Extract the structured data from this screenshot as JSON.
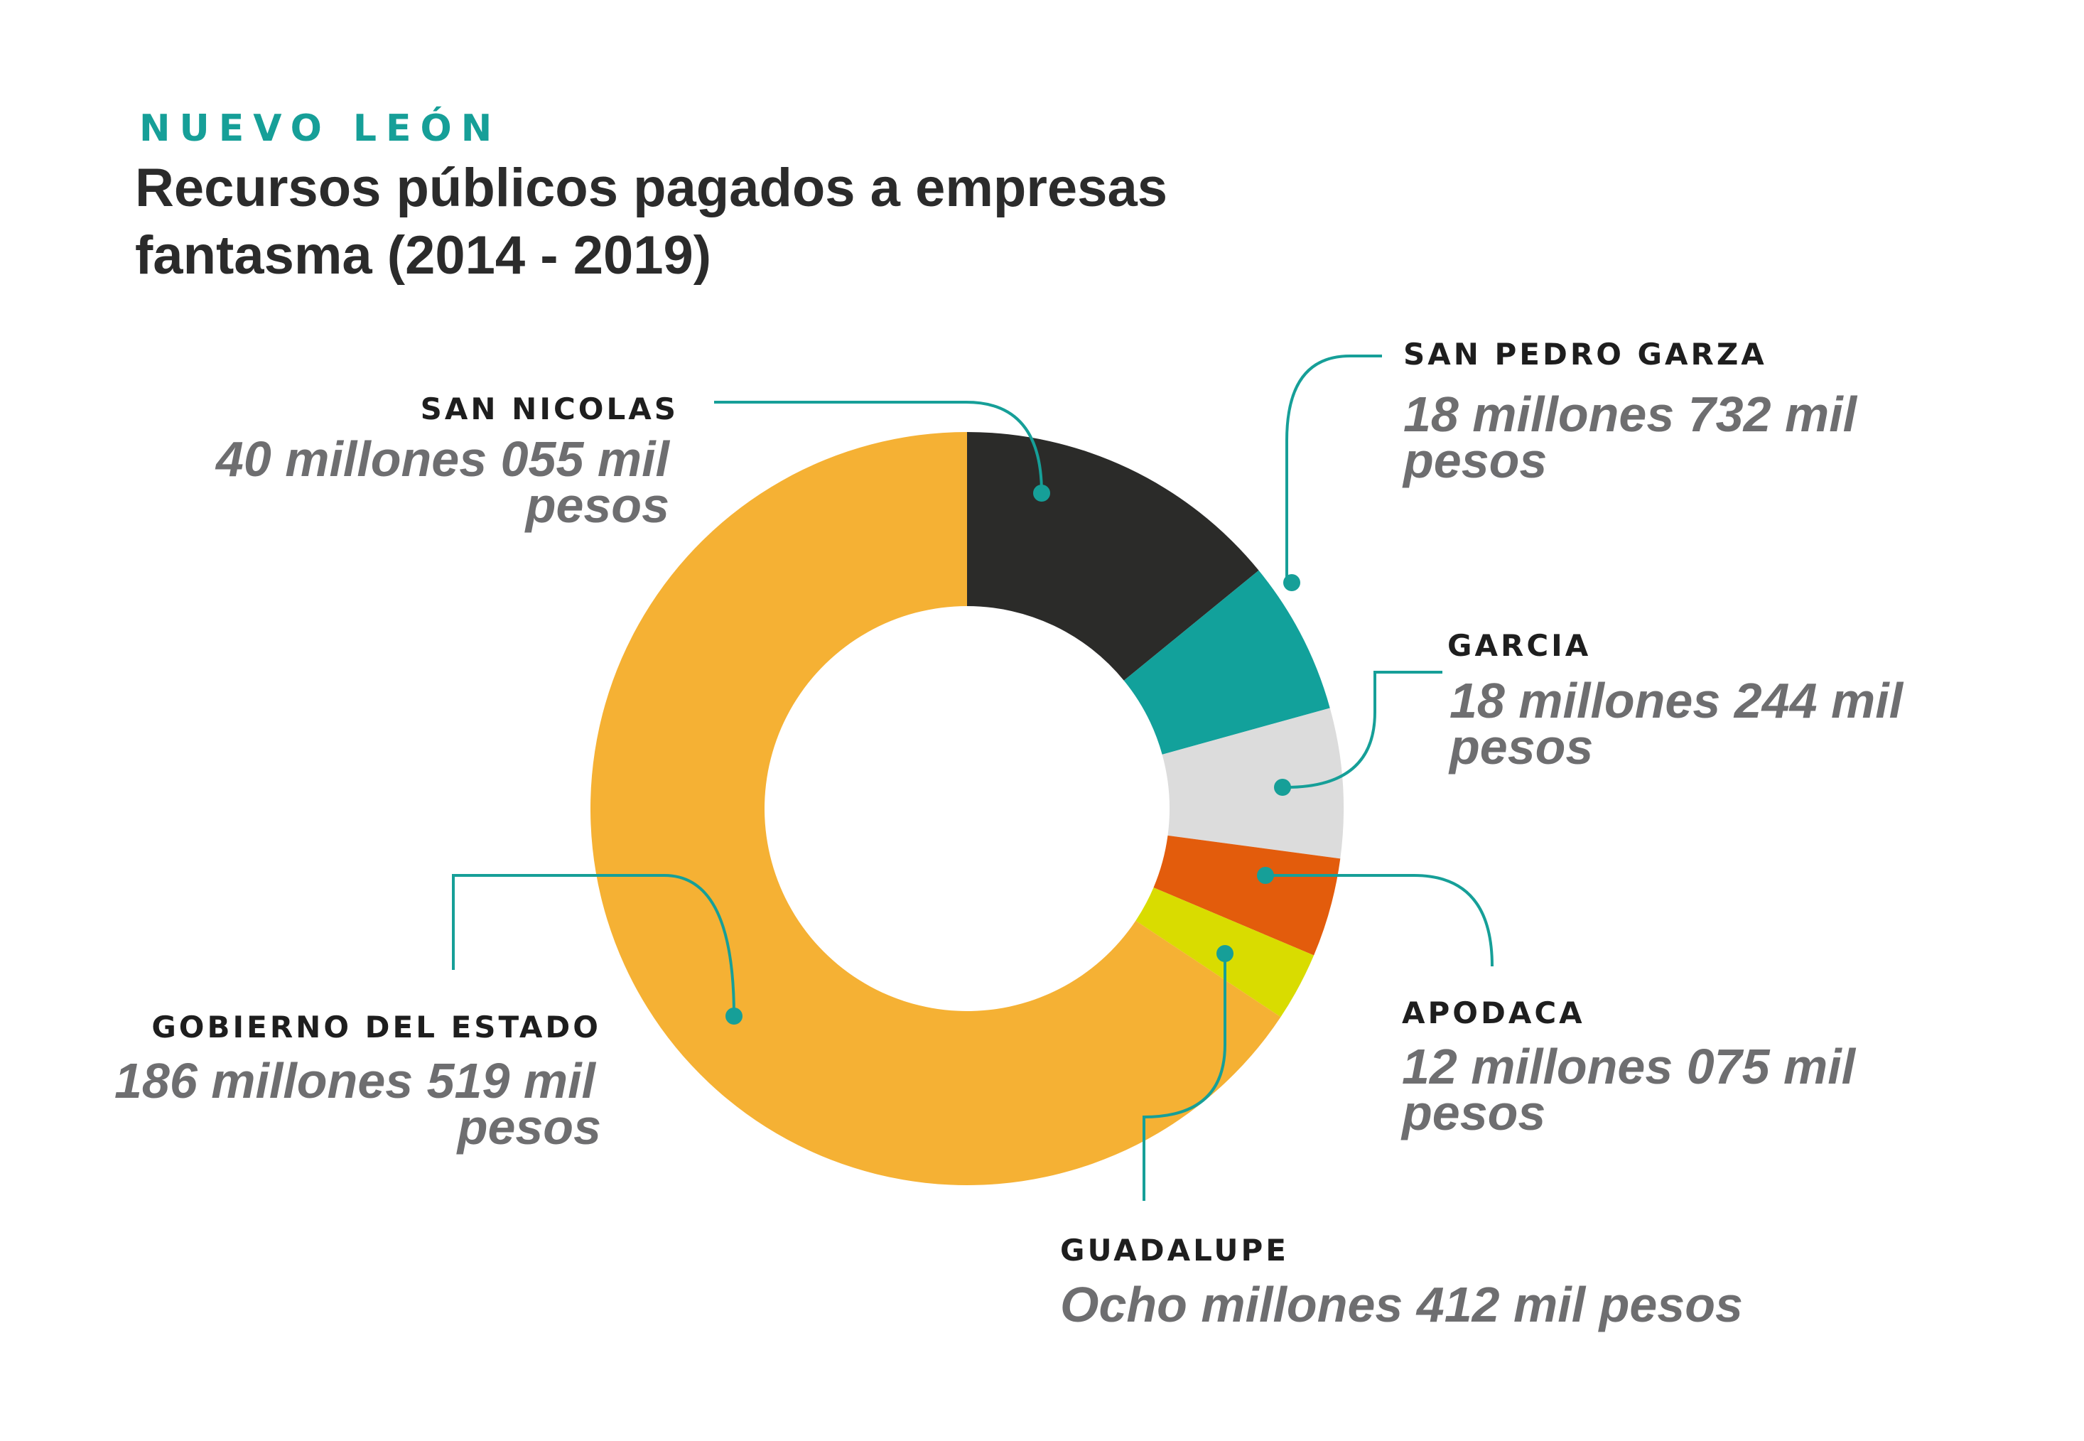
{
  "chart_data": {
    "type": "pie",
    "kicker": "NUEVO LEÓN",
    "title_lines": [
      "Recursos públicos pagados a empresas",
      "fantasma (2014 - 2019)"
    ],
    "unit": "millones de pesos",
    "slices": [
      {
        "label": "SAN NICOLAS",
        "value": 40.055,
        "value_lines": [
          "40 millones 055 mil",
          "pesos"
        ],
        "color": "#2b2b29"
      },
      {
        "label": "SAN PEDRO GARZA",
        "value": 18.732,
        "value_lines": [
          "18 millones 732 mil",
          "pesos"
        ],
        "color": "#12a19b"
      },
      {
        "label": "GARCIA",
        "value": 18.244,
        "value_lines": [
          "18 millones 244 mil",
          "pesos"
        ],
        "color": "#dcdcdc"
      },
      {
        "label": "APODACA",
        "value": 12.075,
        "value_lines": [
          "12 millones 075 mil",
          "pesos"
        ],
        "color": "#e35c0c"
      },
      {
        "label": "GUADALUPE",
        "value": 8.412,
        "value_lines": [
          "Ocho millones 412 mil pesos"
        ],
        "color": "#d9dc00"
      },
      {
        "label": "GOBIERNO DEL ESTADO",
        "value": 186.519,
        "value_lines": [
          "186 millones 519 mil",
          "pesos"
        ],
        "color": "#f5b134"
      }
    ],
    "leader_color": "#169f98",
    "legend": "callouts"
  }
}
